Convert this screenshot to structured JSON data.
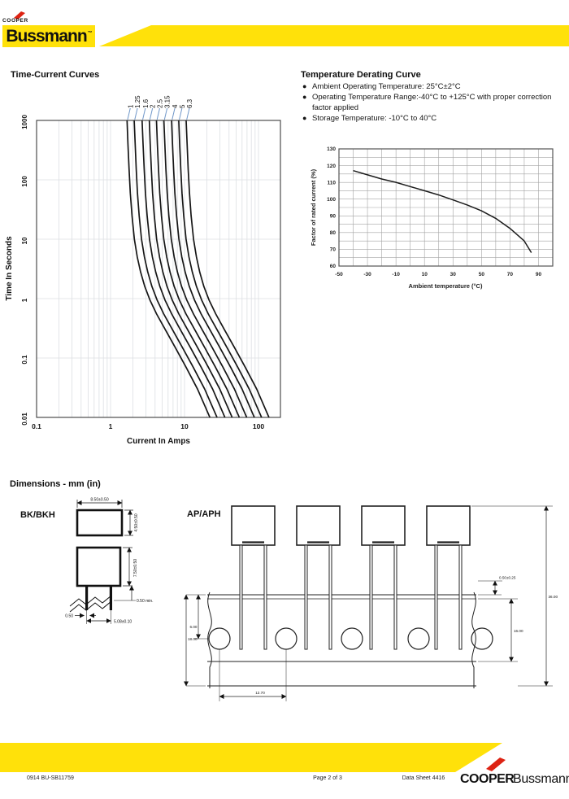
{
  "colors": {
    "yellow": "#FFE10A",
    "red": "#DD2313",
    "leader_blue": "#7097C9",
    "curve": "#161616",
    "grid_light": "#dcdfe3",
    "grid_gray": "#a3a3a3"
  },
  "header": {
    "logo_cooper": "COOPER",
    "logo_brand": "Bussmann",
    "logo_tm": "™"
  },
  "sections": {
    "time_current_title": "Time-Current Curves",
    "derating_title": "Temperature Derating Curve",
    "dimensions_title": "Dimensions - mm (in)"
  },
  "derating_bullets": [
    "Ambient Operating Temperature: 25°C±2°C",
    "Operating Temperature Range:-40°C to +125°C with proper correction factor applied",
    "Storage Temperature: -10°C to 40°C"
  ],
  "chart_data": [
    {
      "id": "time_current_curves",
      "type": "line",
      "title": "Time-Current Curves",
      "xlabel": "Current In Amps",
      "ylabel": "Time In Seconds",
      "x_scale": "log",
      "y_scale": "log",
      "x_range": [
        0.1,
        200
      ],
      "y_range": [
        0.01,
        1000
      ],
      "x_ticks": [
        "0.1",
        "1",
        "10",
        "100"
      ],
      "y_ticks": [
        "1000",
        "100",
        "10",
        "1",
        "0.1",
        "0.01"
      ],
      "grid": true,
      "rating_labels": [
        "1",
        "1.25",
        "1.6",
        "2",
        "2.5",
        "3.15",
        "4",
        "5",
        "6.3"
      ],
      "ratings_amps": [
        1,
        1.25,
        1.6,
        2,
        2.5,
        3.15,
        4,
        5,
        6.3
      ],
      "base_curve_multiple_vs_seconds": [
        [
          1.67,
          1000
        ],
        [
          1.72,
          400
        ],
        [
          1.78,
          150
        ],
        [
          1.85,
          60
        ],
        [
          1.95,
          25
        ],
        [
          2.1,
          10
        ],
        [
          2.3,
          5
        ],
        [
          2.55,
          2.8
        ],
        [
          2.9,
          1.6
        ],
        [
          3.4,
          0.95
        ],
        [
          4.2,
          0.55
        ],
        [
          5.5,
          0.3
        ],
        [
          7.5,
          0.15
        ],
        [
          10.5,
          0.07
        ],
        [
          15,
          0.03
        ],
        [
          22,
          0.01
        ]
      ]
    },
    {
      "id": "temperature_derating",
      "type": "line",
      "xlabel": "Ambient temperature   (°C)",
      "ylabel": "Factor of rated current   (%)",
      "x_range": [
        -50,
        100
      ],
      "y_range": [
        60,
        130
      ],
      "x_ticks": [
        -50,
        -30,
        -10,
        10,
        30,
        50,
        70,
        90
      ],
      "y_ticks": [
        130,
        120,
        110,
        100,
        90,
        80,
        70,
        60
      ],
      "grid": true,
      "points": [
        [
          -40,
          117
        ],
        [
          -30,
          114.5
        ],
        [
          -20,
          112
        ],
        [
          -10,
          110
        ],
        [
          0,
          107.5
        ],
        [
          10,
          105
        ],
        [
          20,
          102.5
        ],
        [
          30,
          99.5
        ],
        [
          40,
          96.5
        ],
        [
          50,
          93
        ],
        [
          60,
          88.5
        ],
        [
          70,
          82.5
        ],
        [
          80,
          75
        ],
        [
          85,
          68
        ]
      ]
    }
  ],
  "dimensions": {
    "bk": {
      "label": "BK/BKH",
      "width": "8.50±0.50",
      "depth": "4.50±0.50",
      "height": "7.50±0.50",
      "standoff": "0.50 min.",
      "lead_dia": "0.50",
      "lead_spacing": "5.08±0.10"
    },
    "ap": {
      "label": "AP/APH",
      "clinch": "0.50±0.25",
      "tape_total": "18.00",
      "hole_to_top": "6.00",
      "hole_pitch": "12.70",
      "tape_inner": "16.00",
      "overall": "36.00"
    }
  },
  "footer": {
    "code": "0914   BU-SB11759",
    "page": "Page 2 of 3",
    "datasheet": "Data Sheet 4416",
    "logo_cooper": "COOPER",
    "logo_brand": "Bussmann"
  }
}
